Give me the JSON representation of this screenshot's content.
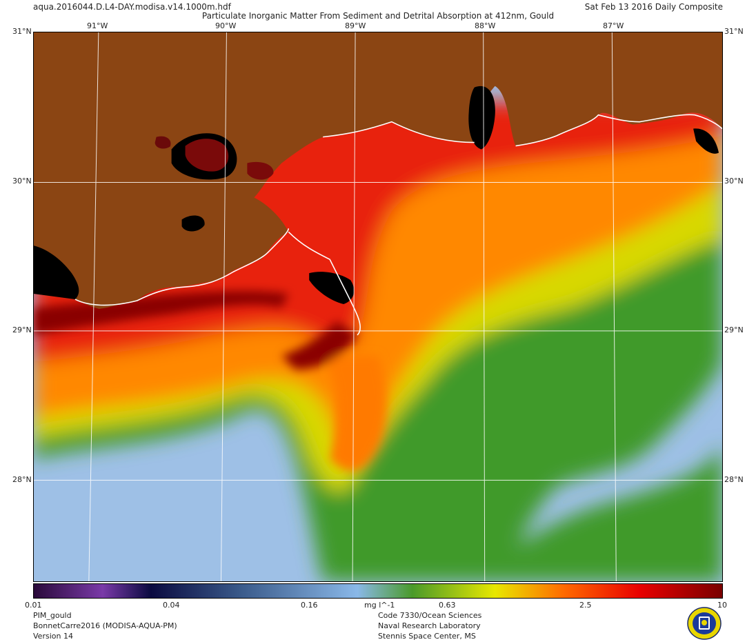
{
  "header": {
    "filename": "aqua.2016044.D.L4-DAY.modisa.v14.1000m.hdf",
    "title": "Particulate Inorganic Matter From Sediment and Detrital Absorption at 412nm, Gould",
    "date": "Sat Feb 13 2016 Daily Composite"
  },
  "axes": {
    "lon_ticks": [
      "91°W",
      "90°W",
      "89°W",
      "88°W",
      "87°W"
    ],
    "lat_ticks": [
      "31°N",
      "30°N",
      "29°N",
      "28°N"
    ]
  },
  "colorbar": {
    "labels": [
      "0.01",
      "0.04",
      "0.16",
      "0.63",
      "2.5",
      "10"
    ],
    "unit": "mg l^-1",
    "colors": [
      "#2a0a3a",
      "#7a3aa8",
      "#0a0a40",
      "#3a5a8a",
      "#8ab8e8",
      "#4a9a2a",
      "#e8e800",
      "#ff6a00",
      "#e80000",
      "#7a0000"
    ]
  },
  "footer": {
    "left": [
      "PIM_gould",
      "BonnetCarre2016 (MODISA-AQUA-PM)",
      "Version 14"
    ],
    "right": [
      "Code 7330/Ocean Sciences",
      "Naval Research Laboratory",
      "Stennis Space Center, MS"
    ]
  },
  "map_colors": {
    "land": "#8b4513",
    "clear_water": "#9ec0e6",
    "green": "#3f9a2c",
    "yellow": "#d8e000",
    "orange": "#ff8a00",
    "red": "#e81800",
    "dark_red": "#8a0000",
    "no_data": "#000000"
  }
}
